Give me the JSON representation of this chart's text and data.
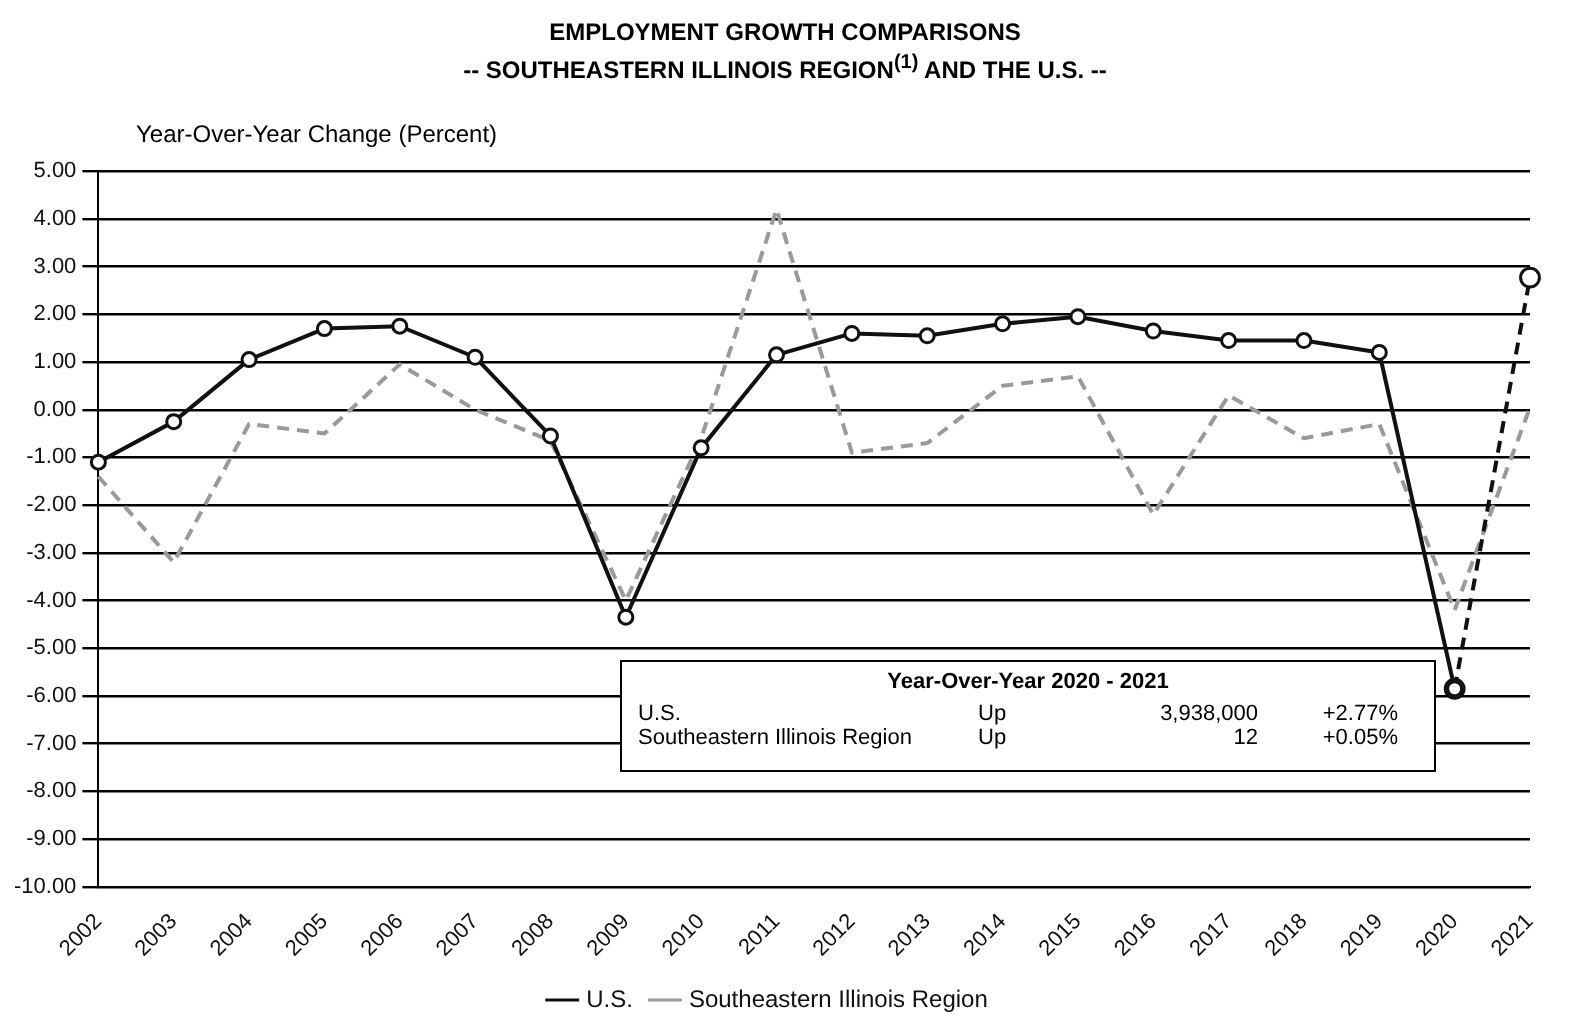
{
  "chart_data": {
    "type": "line",
    "title": "EMPLOYMENT GROWTH COMPARISONS",
    "subtitle": "-- SOUTHEASTERN ILLINOIS REGION$^{(1)}$ AND THE U.S. --",
    "ylabel": "Year-Over-Year Change (Percent)",
    "categories": [
      "2002",
      "2003",
      "2004",
      "2005",
      "2006",
      "2007",
      "2008",
      "2009",
      "2010",
      "2011",
      "2012",
      "2013",
      "2014",
      "2015",
      "2016",
      "2017",
      "2018",
      "2019",
      "2020",
      "2021"
    ],
    "series": [
      {
        "name": "U.S.",
        "color": "#111111",
        "marker": "circle",
        "line_style": "solid",
        "values": [
          -1.1,
          -0.25,
          1.05,
          1.7,
          1.75,
          1.1,
          -0.55,
          -4.35,
          -0.8,
          1.15,
          1.6,
          1.55,
          1.8,
          1.95,
          1.65,
          1.45,
          1.45,
          1.2,
          -5.85,
          null
        ]
      },
      {
        "color": "#111111",
        "marker": "circle",
        "line_style": "dashed",
        "values": [
          null,
          null,
          null,
          null,
          null,
          null,
          null,
          null,
          null,
          null,
          null,
          null,
          null,
          null,
          null,
          null,
          null,
          null,
          -5.85,
          2.77
        ]
      },
      {
        "name": "Southeastern Illinois Region",
        "color": "#9a9a9a",
        "marker": "none",
        "line_style": "dashed",
        "values": [
          -1.4,
          -3.2,
          -0.3,
          -0.5,
          0.95,
          0.0,
          -0.65,
          -4.0,
          -0.6,
          4.2,
          -0.9,
          -0.7,
          0.5,
          0.7,
          -2.2,
          0.3,
          -0.6,
          -0.3,
          -4.2,
          0.05
        ]
      }
    ],
    "ylim": [
      -10,
      5
    ],
    "yticks": [
      {
        "value": -10,
        "label": "-10.00"
      },
      {
        "value": -9,
        "label": "-9.00"
      },
      {
        "value": -8,
        "label": "-8.00"
      },
      {
        "value": -7,
        "label": "-7.00"
      },
      {
        "value": -6,
        "label": "-6.00"
      },
      {
        "value": -5,
        "label": "-5.00"
      },
      {
        "value": -4,
        "label": "-4.00"
      },
      {
        "value": -3,
        "label": "-3.00"
      },
      {
        "value": -2,
        "label": "-2.00"
      },
      {
        "value": -1,
        "label": "-1.00"
      },
      {
        "value": 0,
        "label": "0.00"
      },
      {
        "value": 1,
        "label": "1.00"
      },
      {
        "value": 2,
        "label": "2.00"
      },
      {
        "value": 3,
        "label": "3.00"
      },
      {
        "value": 4,
        "label": "4.00"
      },
      {
        "value": 5,
        "label": "5.00"
      }
    ],
    "grid": "y",
    "legend": "bottom",
    "annotations": [
      "Year-Over-Year 2020 - 2021",
      "U.S.\tUp\t3,938,000\t+2.77%",
      "Southeastern Illinois Region\tUp\t12\t+0.05%"
    ]
  }
}
